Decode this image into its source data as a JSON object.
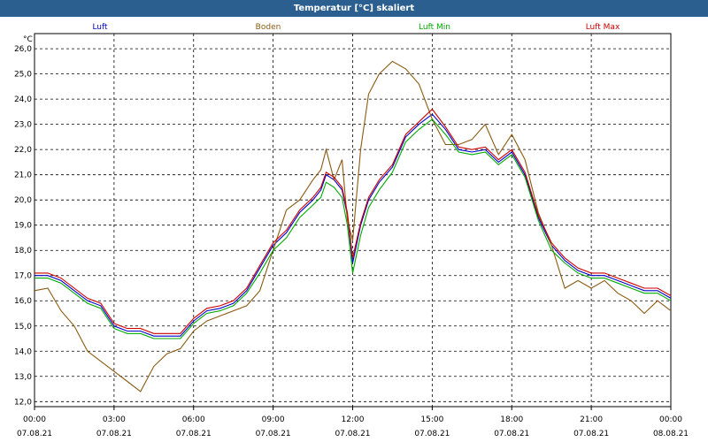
{
  "title": "Temperatur [°C] skaliert",
  "chart_data": {
    "type": "line",
    "title": "Temperatur [°C] skaliert",
    "ylabel": "°C",
    "ylim": [
      11.8,
      26.6
    ],
    "xlim": [
      0,
      24
    ],
    "grid": true,
    "legend_position": "top",
    "yticks": [
      {
        "value": 12,
        "label": "12,0"
      },
      {
        "value": 13,
        "label": "13,0"
      },
      {
        "value": 14,
        "label": "14,0"
      },
      {
        "value": 15,
        "label": "15,0"
      },
      {
        "value": 16,
        "label": "16,0"
      },
      {
        "value": 17,
        "label": "17,0"
      },
      {
        "value": 18,
        "label": "18,0"
      },
      {
        "value": 19,
        "label": "19,0"
      },
      {
        "value": 20,
        "label": "20,0"
      },
      {
        "value": 21,
        "label": "21,0"
      },
      {
        "value": 22,
        "label": "22,0"
      },
      {
        "value": 23,
        "label": "23,0"
      },
      {
        "value": 24,
        "label": "24,0"
      },
      {
        "value": 25,
        "label": "25,0"
      },
      {
        "value": 26,
        "label": "26,0"
      }
    ],
    "xticks": [
      {
        "value": 0,
        "time": "00:00",
        "date": "07.08.21"
      },
      {
        "value": 3,
        "time": "03:00",
        "date": "07.08.21"
      },
      {
        "value": 6,
        "time": "06:00",
        "date": "07.08.21"
      },
      {
        "value": 9,
        "time": "09:00",
        "date": "07.08.21"
      },
      {
        "value": 12,
        "time": "12:00",
        "date": "07.08.21"
      },
      {
        "value": 15,
        "time": "15:00",
        "date": "07.08.21"
      },
      {
        "value": 18,
        "time": "18:00",
        "date": "07.08.21"
      },
      {
        "value": 21,
        "time": "21:00",
        "date": "07.08.21"
      },
      {
        "value": 24,
        "time": "00:00",
        "date": "08.08.21"
      }
    ],
    "x": [
      0,
      0.5,
      1,
      1.5,
      2,
      2.5,
      3,
      3.5,
      4,
      4.5,
      5,
      5.5,
      6,
      6.5,
      7,
      7.5,
      8,
      8.5,
      9,
      9.5,
      10,
      10.5,
      10.8,
      11,
      11.3,
      11.6,
      11.8,
      12,
      12.3,
      12.6,
      13,
      13.5,
      14,
      14.5,
      15,
      15.5,
      16,
      16.5,
      17,
      17.5,
      18,
      18.5,
      19,
      19.5,
      20,
      20.5,
      21,
      21.5,
      22,
      22.5,
      23,
      23.5,
      24
    ],
    "series": [
      {
        "name": "Luft",
        "color": "#0000cc",
        "values": [
          17.0,
          17.0,
          16.8,
          16.4,
          16.0,
          15.8,
          15.0,
          14.8,
          14.8,
          14.6,
          14.6,
          14.6,
          15.2,
          15.6,
          15.7,
          15.9,
          16.4,
          17.3,
          18.2,
          18.7,
          19.5,
          20.0,
          20.4,
          21.0,
          20.8,
          20.4,
          19.4,
          17.5,
          19.0,
          20.0,
          20.7,
          21.3,
          22.5,
          23.0,
          23.4,
          22.8,
          22.0,
          21.9,
          22.0,
          21.5,
          21.9,
          21.0,
          19.3,
          18.2,
          17.6,
          17.2,
          17.0,
          17.0,
          16.8,
          16.6,
          16.4,
          16.4,
          16.1
        ]
      },
      {
        "name": "Boden",
        "color": "#8b5a10",
        "values": [
          16.4,
          16.5,
          15.6,
          15.0,
          14.0,
          13.6,
          13.2,
          12.8,
          12.4,
          13.4,
          13.9,
          14.1,
          14.8,
          15.2,
          15.4,
          15.6,
          15.8,
          16.4,
          18.0,
          19.6,
          20.0,
          20.8,
          21.2,
          22.0,
          20.8,
          21.6,
          19.2,
          18.4,
          22.0,
          24.2,
          25.0,
          25.5,
          25.2,
          24.6,
          23.2,
          22.2,
          22.2,
          22.4,
          23.0,
          21.8,
          22.6,
          21.6,
          19.5,
          18.2,
          16.5,
          16.8,
          16.5,
          16.8,
          16.3,
          16.0,
          15.5,
          16.0,
          15.6
        ]
      },
      {
        "name": "Luft Min",
        "color": "#00aa00",
        "values": [
          16.9,
          16.9,
          16.7,
          16.3,
          15.9,
          15.7,
          14.9,
          14.7,
          14.7,
          14.5,
          14.5,
          14.5,
          15.1,
          15.5,
          15.6,
          15.8,
          16.3,
          17.1,
          18.0,
          18.5,
          19.3,
          19.8,
          20.1,
          20.7,
          20.5,
          20.1,
          19.0,
          17.1,
          18.6,
          19.7,
          20.4,
          21.1,
          22.3,
          22.8,
          23.2,
          22.6,
          21.9,
          21.8,
          21.9,
          21.4,
          21.8,
          20.9,
          19.2,
          18.0,
          17.5,
          17.1,
          16.9,
          16.9,
          16.7,
          16.5,
          16.3,
          16.3,
          16.0
        ]
      },
      {
        "name": "Luft Max",
        "color": "#cc0000",
        "values": [
          17.1,
          17.1,
          16.9,
          16.5,
          16.1,
          15.9,
          15.1,
          14.9,
          14.9,
          14.7,
          14.7,
          14.7,
          15.3,
          15.7,
          15.8,
          16.0,
          16.5,
          17.4,
          18.3,
          18.8,
          19.6,
          20.1,
          20.5,
          21.1,
          20.9,
          20.5,
          19.5,
          17.7,
          19.1,
          20.1,
          20.8,
          21.4,
          22.6,
          23.1,
          23.6,
          22.9,
          22.1,
          22.0,
          22.1,
          21.6,
          22.0,
          21.1,
          19.4,
          18.3,
          17.7,
          17.3,
          17.1,
          17.1,
          16.9,
          16.7,
          16.5,
          16.5,
          16.2
        ]
      }
    ]
  }
}
